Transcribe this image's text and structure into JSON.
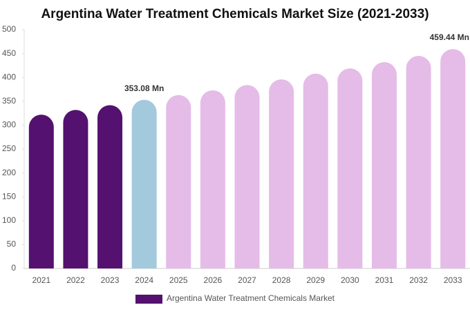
{
  "chart_data": {
    "type": "bar",
    "title": "Argentina Water Treatment Chemicals Market Size (2021-2033)",
    "categories": [
      "2021",
      "2022",
      "2023",
      "2024",
      "2025",
      "2026",
      "2027",
      "2028",
      "2029",
      "2030",
      "2031",
      "2032",
      "2033"
    ],
    "series": [
      {
        "name": "Argentina Water Treatment Chemicals Market",
        "color": "#541170",
        "values": [
          322,
          332,
          342,
          353.08,
          363,
          373,
          384,
          396,
          408,
          419,
          432,
          445,
          459.44
        ],
        "value_labels": [
          null,
          null,
          null,
          "353.08 Mn",
          null,
          null,
          null,
          null,
          null,
          null,
          null,
          null,
          "459.44 Mn"
        ],
        "colors": [
          "#541170",
          "#541170",
          "#541170",
          "#a3c9dd",
          "#e5bbe8",
          "#e5bbe8",
          "#e5bbe8",
          "#e5bbe8",
          "#e5bbe8",
          "#e5bbe8",
          "#e5bbe8",
          "#e5bbe8",
          "#e5bbe8"
        ]
      }
    ],
    "ylim": [
      0,
      500
    ],
    "yticks": [
      0,
      50,
      100,
      150,
      200,
      250,
      300,
      350,
      400,
      450,
      500
    ],
    "grid": false
  }
}
